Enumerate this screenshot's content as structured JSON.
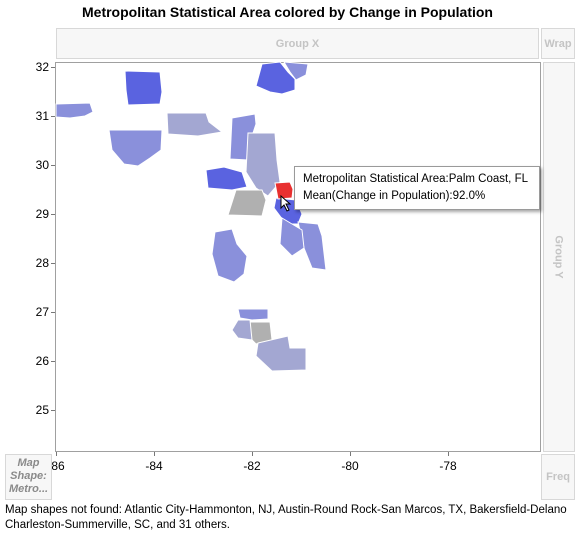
{
  "title": "Metropolitan Statistical Area colored by Change in Population",
  "drop_zones": {
    "group_x": "Group X",
    "wrap": "Wrap",
    "group_y": "Group Y",
    "freq": "Freq",
    "map_shape_lines": [
      "Map",
      "Shape:",
      "Metro..."
    ]
  },
  "y_ticks": [
    "32",
    "31",
    "30",
    "29",
    "28",
    "27",
    "26",
    "25"
  ],
  "x_ticks": [
    "-86",
    "-84",
    "-82",
    "-80",
    "-78"
  ],
  "footnote": {
    "line1": "Map shapes not found: Atlantic City-Hammonton, NJ, Austin-Round Rock-San Marcos, TX, Bakersfield-Delano",
    "line2": "Charleston-Summerville, SC, and 31 others."
  },
  "tooltip": {
    "line1_label": "Metropolitan Statistical Area:",
    "line1_value": "Palm Coast, FL",
    "line2_label": "Mean(Change in Population):",
    "line2_value": "92.0%"
  },
  "colors": {
    "highlight": "#e83030",
    "strong_blue": "#5a63e0",
    "mid_blue": "#8a90db",
    "pale_blue": "#a3a7d2",
    "grey": "#b0b0b0"
  }
}
